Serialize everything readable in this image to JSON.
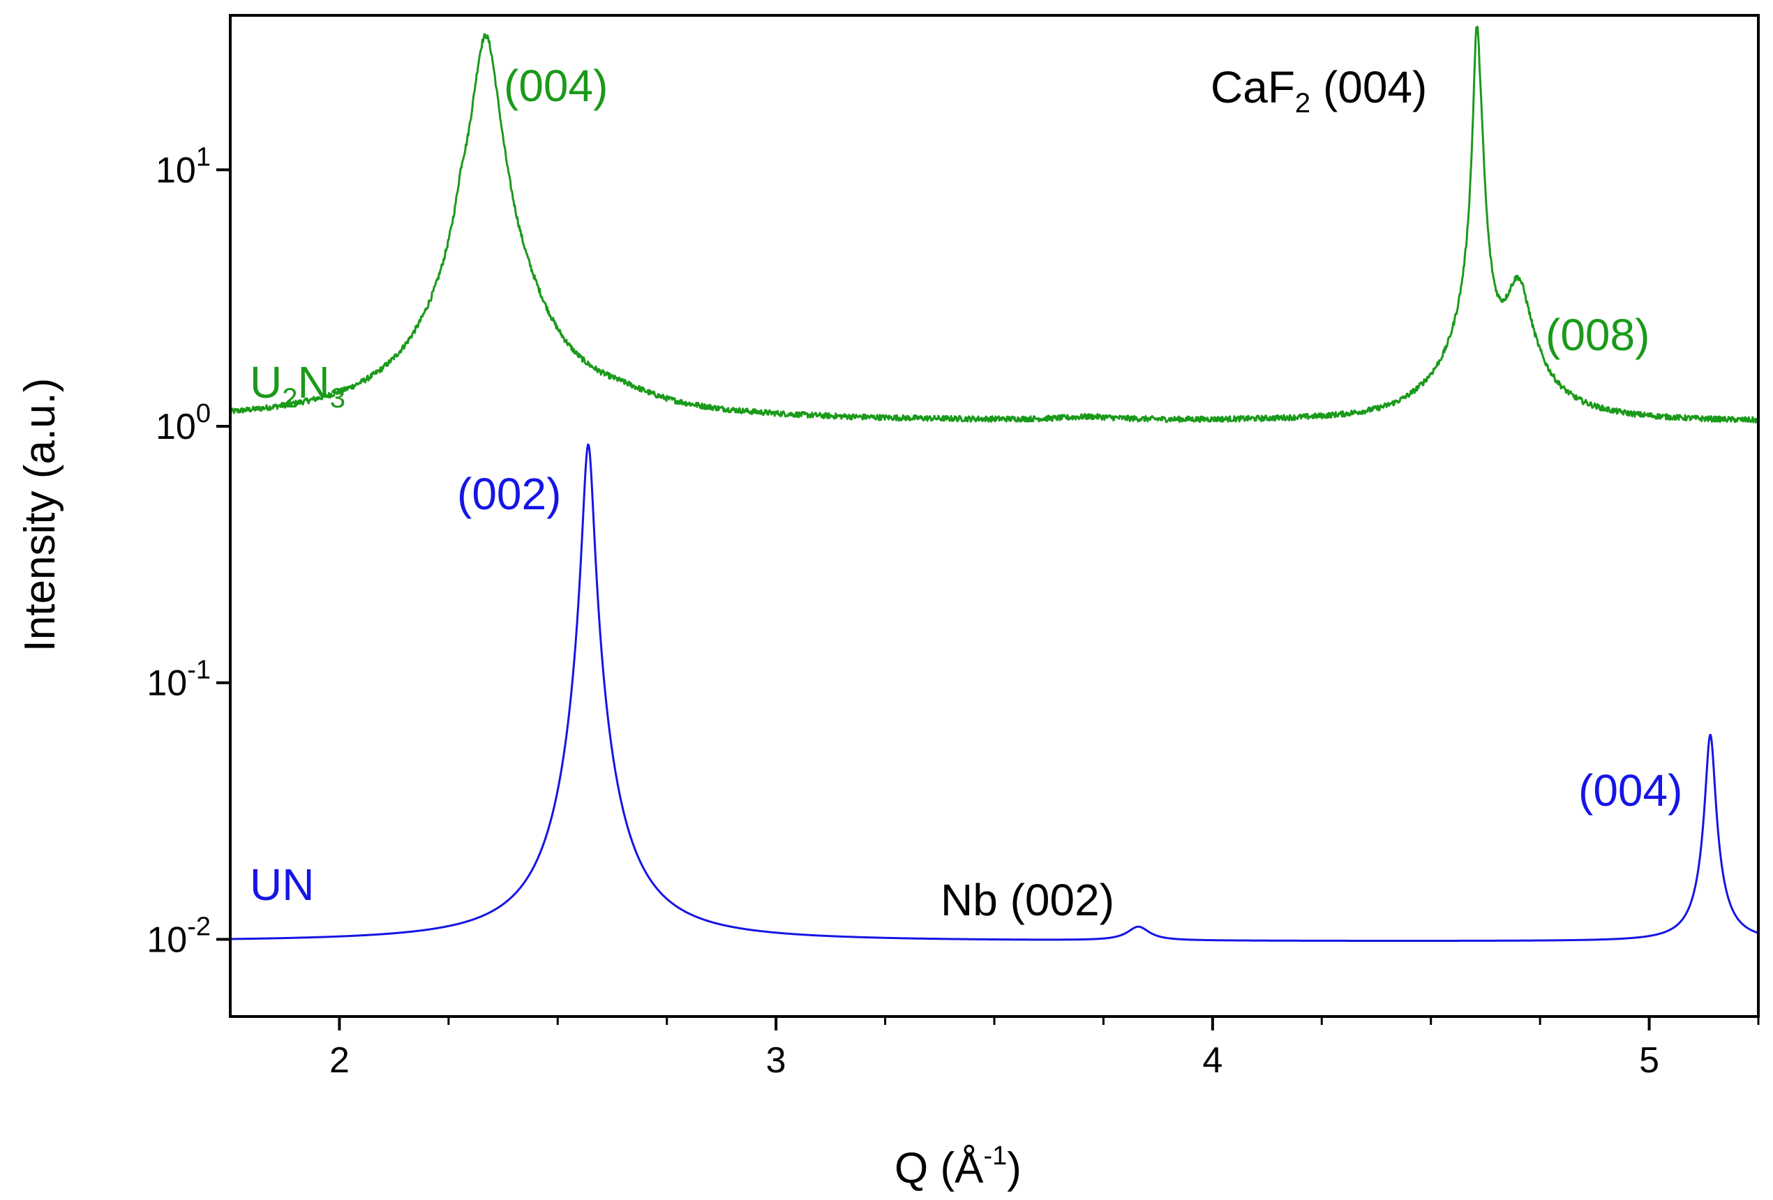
{
  "chart_data": {
    "type": "line",
    "xlabel": {
      "base": "Q (Å",
      "sup": "-1",
      "tail": ")"
    },
    "ylabel": "Intensity (a.u.)",
    "xlim": [
      1.75,
      5.25
    ],
    "ylim": [
      0.005,
      40
    ],
    "yscale": "log",
    "grid": false,
    "x_ticks": [
      {
        "value": 2,
        "label": "2"
      },
      {
        "value": 3,
        "label": "3"
      },
      {
        "value": 4,
        "label": "4"
      },
      {
        "value": 5,
        "label": "5"
      }
    ],
    "x_minor_ticks": [
      2.25,
      2.5,
      2.75,
      3.25,
      3.5,
      3.75,
      4.25,
      4.5,
      4.75,
      5.25
    ],
    "y_ticks": [
      {
        "value": 10,
        "base": "10",
        "exp": "1"
      },
      {
        "value": 1,
        "base": "10",
        "exp": "0"
      },
      {
        "value": 0.1,
        "base": "10",
        "exp": "-1"
      },
      {
        "value": 0.01,
        "base": "10",
        "exp": "-2"
      }
    ],
    "series": [
      {
        "name": {
          "a": "U",
          "s1": "2",
          "b": "N",
          "s2": "3"
        },
        "color": "#1a9a1a",
        "baseline": 1.03,
        "noise": 0.025,
        "peaks": [
          {
            "x": 2.335,
            "height": 31,
            "width": 0.03
          },
          {
            "x": 2.335,
            "height": 1.2,
            "width": 0.09
          },
          {
            "x": 2.28,
            "height": 1.5,
            "width": 0.012
          },
          {
            "x": 2.44,
            "height": 0.2,
            "width": 0.05
          },
          {
            "x": 2.65,
            "height": 0.08,
            "width": 0.08
          },
          {
            "x": 3.72,
            "height": 0.03,
            "width": 0.08
          },
          {
            "x": 4.605,
            "height": 29,
            "width": 0.007
          },
          {
            "x": 4.612,
            "height": 8,
            "width": 0.01
          },
          {
            "x": 4.59,
            "height": 0.9,
            "width": 0.05
          },
          {
            "x": 4.7,
            "height": 2.0,
            "width": 0.03
          },
          {
            "x": 4.7,
            "height": 0.35,
            "width": 0.07
          },
          {
            "x": 4.5,
            "height": 0.08,
            "width": 0.06
          }
        ]
      },
      {
        "name": "UN",
        "color": "#1515e6",
        "baseline": 0.0098,
        "noise": 0,
        "peaks": [
          {
            "x": 2.57,
            "height": 0.82,
            "width": 0.012
          },
          {
            "x": 2.57,
            "height": 0.02,
            "width": 0.04
          },
          {
            "x": 3.83,
            "height": 0.0013,
            "width": 0.03
          },
          {
            "x": 5.14,
            "height": 0.049,
            "width": 0.011
          },
          {
            "x": 5.14,
            "height": 0.004,
            "width": 0.03
          }
        ]
      }
    ],
    "annotations": [
      {
        "text": "(004)",
        "color": "#1a9a1a"
      },
      {
        "text": "(008)",
        "color": "#1a9a1a"
      },
      {
        "text": "(002)",
        "color": "#1515e6"
      },
      {
        "text": "(004)",
        "color": "#1515e6"
      },
      {
        "text": "Nb (002)",
        "color": "#000000"
      }
    ],
    "caf2_label": {
      "a": "CaF",
      "s": "2",
      "b": " (004)",
      "color": "#000000"
    }
  }
}
